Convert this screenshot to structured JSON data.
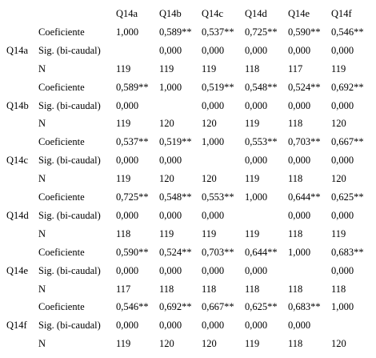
{
  "header": {
    "columns": [
      "Q14a",
      "Q14b",
      "Q14c",
      "Q14d",
      "Q14e",
      "Q14f"
    ]
  },
  "table": {
    "groups": [
      {
        "variable": "Q14a",
        "rows": [
          {
            "label": "Coeficiente",
            "cells": [
              "1,000",
              "0,589**",
              "0,537**",
              "0,725**",
              "0,590**",
              "0,546**"
            ]
          },
          {
            "label": "Sig. (bi-caudal)",
            "cells": [
              null,
              "0,000",
              "0,000",
              "0,000",
              "0,000",
              "0,000"
            ]
          },
          {
            "label": "N",
            "cells": [
              119,
              119,
              119,
              118,
              117,
              119
            ]
          }
        ]
      },
      {
        "variable": "Q14b",
        "rows": [
          {
            "label": "Coeficiente",
            "cells": [
              "0,589**",
              "1,000",
              "0,519**",
              "0,548**",
              "0,524**",
              "0,692**"
            ]
          },
          {
            "label": "Sig. (bi-caudal)",
            "cells": [
              "0,000",
              null,
              "0,000",
              "0,000",
              "0,000",
              "0,000"
            ]
          },
          {
            "label": "N",
            "cells": [
              119,
              120,
              120,
              119,
              118,
              120
            ]
          }
        ]
      },
      {
        "variable": "Q14c",
        "rows": [
          {
            "label": "Coeficiente",
            "cells": [
              "0,537**",
              "0,519**",
              "1,000",
              "0,553**",
              "0,703**",
              "0,667**"
            ]
          },
          {
            "label": "Sig. (bi-caudal)",
            "cells": [
              "0,000",
              "0,000",
              null,
              "0,000",
              "0,000",
              "0,000"
            ]
          },
          {
            "label": "N",
            "cells": [
              119,
              120,
              120,
              119,
              118,
              120
            ]
          }
        ]
      },
      {
        "variable": "Q14d",
        "rows": [
          {
            "label": "Coeficiente",
            "cells": [
              "0,725**",
              "0,548**",
              "0,553**",
              "1,000",
              "0,644**",
              "0,625**"
            ]
          },
          {
            "label": "Sig. (bi-caudal)",
            "cells": [
              "0,000",
              "0,000",
              "0,000",
              null,
              "0,000",
              "0,000"
            ]
          },
          {
            "label": "N",
            "cells": [
              118,
              119,
              119,
              119,
              118,
              119
            ]
          }
        ]
      },
      {
        "variable": "Q14e",
        "rows": [
          {
            "label": "Coeficiente",
            "cells": [
              "0,590**",
              "0,524**",
              "0,703**",
              "0,644**",
              "1,000",
              "0,683**"
            ]
          },
          {
            "label": "Sig. (bi-caudal)",
            "cells": [
              "0,000",
              "0,000",
              "0,000",
              "0,000",
              null,
              "0,000"
            ]
          },
          {
            "label": "N",
            "cells": [
              117,
              118,
              118,
              118,
              118,
              118
            ]
          }
        ]
      },
      {
        "variable": "Q14f",
        "rows": [
          {
            "label": "Coeficiente",
            "cells": [
              "0,546**",
              "0,692**",
              "0,667**",
              "0,625**",
              "0,683**",
              "1,000"
            ]
          },
          {
            "label": "Sig. (bi-caudal)",
            "cells": [
              "0,000",
              "0,000",
              "0,000",
              "0,000",
              "0,000",
              null
            ]
          },
          {
            "label": "N",
            "cells": [
              119,
              120,
              120,
              119,
              118,
              120
            ]
          }
        ]
      }
    ]
  }
}
